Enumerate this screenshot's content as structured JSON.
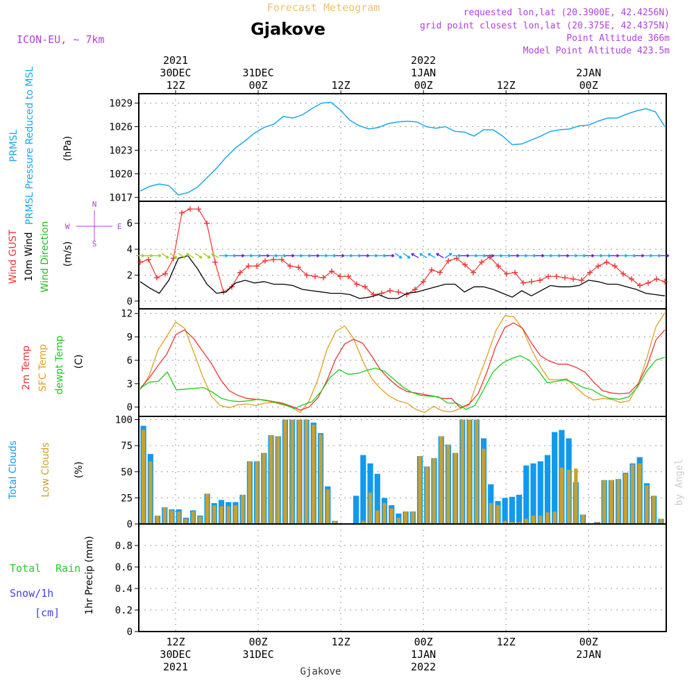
{
  "colors": {
    "pressure": "#18a8f0",
    "gust": "#ee3333",
    "wind": "#000000",
    "wind_dir": "#20bb20",
    "temp2m": "#ee3333",
    "sfc": "#e0a020",
    "dewpt": "#18cc18",
    "total_clouds": "#1199ee",
    "low_clouds": "#c8a030",
    "rain": "#22cc22",
    "snow": "#4040ee",
    "title": "#000000",
    "subtitle_orange": "#f0c070",
    "meta_purple": "#b040e0"
  },
  "header": {
    "title": "Gjakove",
    "subtitle": "Forecast Meteogram",
    "model": "ICON-EU, ~ 7km",
    "requested": "requested lon,lat (20.3900E, 42.4256N)",
    "grid_point": "grid point closest lon,lat (20.375E, 42.4375N)",
    "point_alt": "Point Altitude 366m",
    "model_alt": "Model Point Altitude 423.5m",
    "footer": "Gjakove",
    "watermark": "by Angel"
  },
  "time_labels": [
    {
      "hour": 12,
      "lines": [
        "2021",
        "30DEC",
        "12Z"
      ]
    },
    {
      "hour": 24,
      "lines": [
        "31DEC",
        "00Z"
      ]
    },
    {
      "hour": 36,
      "lines": [
        "12Z"
      ]
    },
    {
      "hour": 48,
      "lines": [
        "2022",
        "1JAN",
        "00Z"
      ]
    },
    {
      "hour": 60,
      "lines": [
        "12Z"
      ]
    },
    {
      "hour": 72,
      "lines": [
        "2JAN",
        "00Z"
      ]
    }
  ],
  "chart_data": [
    {
      "type": "line",
      "title": "PRMSL Pressure Reduced to MSL",
      "ylabel": "(hPa)",
      "ylim": [
        1016.5,
        1030.2
      ],
      "yticks": [
        1017,
        1020,
        1023,
        1026,
        1029
      ],
      "series": [
        {
          "name": "PRMSL",
          "values": [
            1017.8,
            1018.4,
            1018.7,
            1018.5,
            1017.3,
            1017.6,
            1018.3,
            1019.5,
            1020.7,
            1022.1,
            1023.3,
            1024.2,
            1025.2,
            1025.9,
            1026.3,
            1027.3,
            1027.1,
            1027.5,
            1028.3,
            1029.0,
            1029.1,
            1028.1,
            1026.8,
            1026.1,
            1025.7,
            1025.9,
            1026.4,
            1026.6,
            1026.7,
            1026.6,
            1026.0,
            1025.8,
            1026.0,
            1025.4,
            1025.3,
            1024.8,
            1025.6,
            1025.6,
            1024.8,
            1023.7,
            1023.8,
            1024.3,
            1024.8,
            1025.4,
            1025.6,
            1025.7,
            1026.1,
            1026.2,
            1026.7,
            1027.1,
            1027.1,
            1027.6,
            1028.0,
            1028.3,
            1027.9,
            1026.0
          ]
        }
      ]
    },
    {
      "type": "line",
      "title": "Wind GUST / 10m Wind Speed and Direction",
      "ylabel": "(m/s)",
      "ylim": [
        -0.6,
        7.7
      ],
      "yticks": [
        0,
        2,
        4,
        6
      ],
      "compass": {
        "north": "N",
        "south": "S",
        "west": "W",
        "east": "E"
      },
      "series": [
        {
          "name": "Wind GUST",
          "values": [
            3.0,
            3.2,
            1.8,
            2.1,
            3.3,
            6.8,
            7.1,
            7.1,
            6.0,
            3.0,
            0.7,
            1.1,
            2.2,
            2.7,
            2.7,
            3.1,
            3.2,
            3.2,
            2.7,
            2.6,
            2.0,
            1.9,
            1.8,
            2.3,
            1.9,
            1.9,
            1.3,
            1.1,
            0.5,
            0.6,
            0.8,
            0.7,
            0.5,
            0.9,
            1.5,
            2.4,
            2.2,
            3.1,
            3.3,
            2.8,
            2.2,
            3.0,
            3.4,
            2.7,
            2.1,
            2.2,
            1.4,
            1.5,
            1.6,
            1.9,
            1.9,
            1.8,
            1.7,
            1.6,
            2.2,
            2.7,
            3.0,
            2.7,
            2.1,
            1.7,
            1.2,
            1.4,
            1.7,
            1.5
          ]
        },
        {
          "name": "10m Wind",
          "values": [
            1.5,
            1.0,
            0.6,
            1.6,
            3.3,
            3.5,
            2.5,
            1.3,
            0.6,
            0.7,
            1.4,
            1.6,
            1.4,
            1.5,
            1.3,
            1.3,
            1.2,
            0.9,
            0.8,
            0.7,
            0.6,
            0.6,
            0.5,
            0.2,
            0.3,
            0.5,
            0.2,
            0.2,
            0.6,
            0.7,
            0.9,
            1.1,
            1.3,
            1.3,
            0.7,
            1.1,
            1.1,
            0.9,
            0.6,
            0.3,
            0.8,
            0.4,
            0.8,
            1.2,
            1.1,
            1.1,
            1.2,
            1.6,
            1.5,
            1.3,
            1.3,
            1.1,
            0.9,
            0.6,
            0.5,
            0.4
          ]
        },
        {
          "name": "Wind Direction",
          "values": [
            "E",
            "E",
            "E",
            "SE",
            "SE",
            "SE",
            "NW",
            "SE",
            "SE",
            "NW",
            "E",
            "E",
            "E",
            "E",
            "E",
            "E",
            "E",
            "E",
            "E",
            "E",
            "E",
            "E",
            "E",
            "E",
            "E",
            "E",
            "E",
            "E",
            "E",
            "E",
            "E",
            "SE",
            "SE",
            "NW",
            "NW",
            "NW",
            "NW",
            "NE",
            "E",
            "E",
            "E",
            "E",
            "E",
            "E",
            "E",
            "E",
            "E",
            "E",
            "E",
            "E",
            "E",
            "E",
            "E",
            "E",
            "E",
            "E",
            "E",
            "E",
            "E",
            "E",
            "E",
            "E",
            "E",
            "E"
          ]
        }
      ]
    },
    {
      "type": "line",
      "title": "2m Temp / SFC Temp / dewpt Temp",
      "ylabel": "(C)",
      "ylim": [
        -1.2,
        12.6
      ],
      "yticks": [
        0,
        3,
        6,
        9,
        12
      ],
      "series": [
        {
          "name": "2m Temp",
          "values": [
            2.4,
            3.7,
            5.3,
            6.8,
            9.3,
            9.9,
            8.8,
            7.2,
            5.6,
            3.6,
            2.1,
            1.5,
            1.1,
            1.0,
            0.9,
            0.7,
            0.5,
            0.1,
            -0.4,
            0.0,
            1.2,
            3.4,
            6.2,
            8.1,
            8.7,
            8.2,
            6.6,
            4.8,
            3.6,
            2.6,
            2.0,
            1.8,
            1.6,
            1.4,
            1.1,
            1.1,
            -0.1,
            0.4,
            1.7,
            4.5,
            7.8,
            10.2,
            10.8,
            10.1,
            8.2,
            6.6,
            5.9,
            5.5,
            5.5,
            5.1,
            4.5,
            3.2,
            2.1,
            1.8,
            1.7,
            1.8,
            3.0,
            5.3,
            8.6,
            9.9
          ]
        },
        {
          "name": "SFC Temp",
          "values": [
            2.2,
            4.0,
            7.3,
            9.1,
            10.9,
            10.1,
            7.1,
            4.0,
            1.4,
            0.2,
            -0.1,
            0.3,
            0.4,
            0.2,
            0.5,
            0.6,
            0.3,
            0.0,
            -0.7,
            0.8,
            3.6,
            7.4,
            9.7,
            10.4,
            8.8,
            6.0,
            3.7,
            2.4,
            1.4,
            0.8,
            0.5,
            -0.3,
            -0.7,
            0.1,
            -0.5,
            -0.6,
            -0.2,
            0.3,
            3.5,
            6.5,
            9.8,
            11.7,
            11.6,
            10.0,
            7.4,
            5.2,
            3.5,
            3.5,
            3.6,
            2.5,
            1.5,
            0.9,
            1.1,
            1.0,
            0.6,
            0.8,
            2.9,
            6.4,
            10.3,
            12.1
          ]
        },
        {
          "name": "dewpt Temp",
          "values": [
            2.4,
            3.2,
            3.3,
            4.5,
            2.2,
            2.3,
            2.4,
            2.5,
            1.9,
            1.1,
            0.8,
            0.7,
            0.8,
            1.0,
            0.8,
            0.6,
            0.3,
            -0.2,
            0.3,
            0.7,
            2.0,
            3.8,
            4.8,
            4.2,
            4.3,
            4.7,
            5.0,
            4.6,
            3.6,
            2.6,
            1.9,
            1.5,
            1.4,
            1.3,
            0.5,
            0.5,
            -0.3,
            0.2,
            2.3,
            4.5,
            5.6,
            6.2,
            6.6,
            6.0,
            4.7,
            3.1,
            3.3,
            3.5,
            3.1,
            2.5,
            2.2,
            1.5,
            1.1,
            1.0,
            1.3,
            2.6,
            4.6,
            6.0,
            6.4
          ]
        }
      ]
    },
    {
      "type": "bar",
      "title": "Total Clouds / Low Clouds",
      "ylabel": "(%)",
      "ylim": [
        0,
        103
      ],
      "yticks": [
        0,
        25,
        50,
        75,
        100
      ],
      "series": [
        {
          "name": "Total Clouds",
          "values": [
            94,
            67,
            8,
            16,
            14,
            14,
            6,
            13,
            8,
            29,
            20,
            23,
            21,
            21,
            28,
            60,
            60,
            68,
            85,
            84,
            100,
            100,
            100,
            100,
            97,
            87,
            36,
            3,
            0,
            0,
            27,
            66,
            58,
            48,
            25,
            18,
            10,
            12,
            12,
            65,
            55,
            63,
            84,
            76,
            68,
            100,
            100,
            100,
            82,
            38,
            22,
            25,
            26,
            28,
            56,
            58,
            60,
            66,
            88,
            90,
            82,
            40,
            9,
            0,
            2,
            42,
            42,
            43,
            49,
            58,
            64,
            39,
            27,
            5
          ]
        },
        {
          "name": "Low Clouds",
          "values": [
            90,
            60,
            8,
            16,
            13,
            12,
            5,
            12,
            7,
            29,
            18,
            17,
            17,
            18,
            28,
            60,
            60,
            68,
            85,
            84,
            100,
            100,
            100,
            100,
            95,
            86,
            33,
            3,
            0,
            0,
            0,
            3,
            30,
            13,
            20,
            15,
            6,
            12,
            12,
            65,
            55,
            63,
            84,
            76,
            68,
            100,
            100,
            100,
            72,
            20,
            18,
            3,
            2,
            2,
            5,
            8,
            8,
            11,
            12,
            54,
            52,
            53,
            9,
            0,
            2,
            42,
            42,
            43,
            48,
            57,
            58,
            37,
            27,
            5
          ]
        }
      ]
    },
    {
      "type": "bar",
      "title": "Total Rain / Snow/1h [cm]",
      "ylabel": "1hr Precip (mm)",
      "ylim": [
        0,
        1.0
      ],
      "yticks": [
        0,
        0.2,
        0.4,
        0.6,
        0.8
      ],
      "series": [
        {
          "name": "Total Rain",
          "values": []
        },
        {
          "name": "Snow/1h",
          "values": []
        }
      ],
      "labels": {
        "rain_total": "Total",
        "rain_word": "Rain",
        "snow": "Snow/1h",
        "snow_unit": "[cm]"
      }
    }
  ]
}
